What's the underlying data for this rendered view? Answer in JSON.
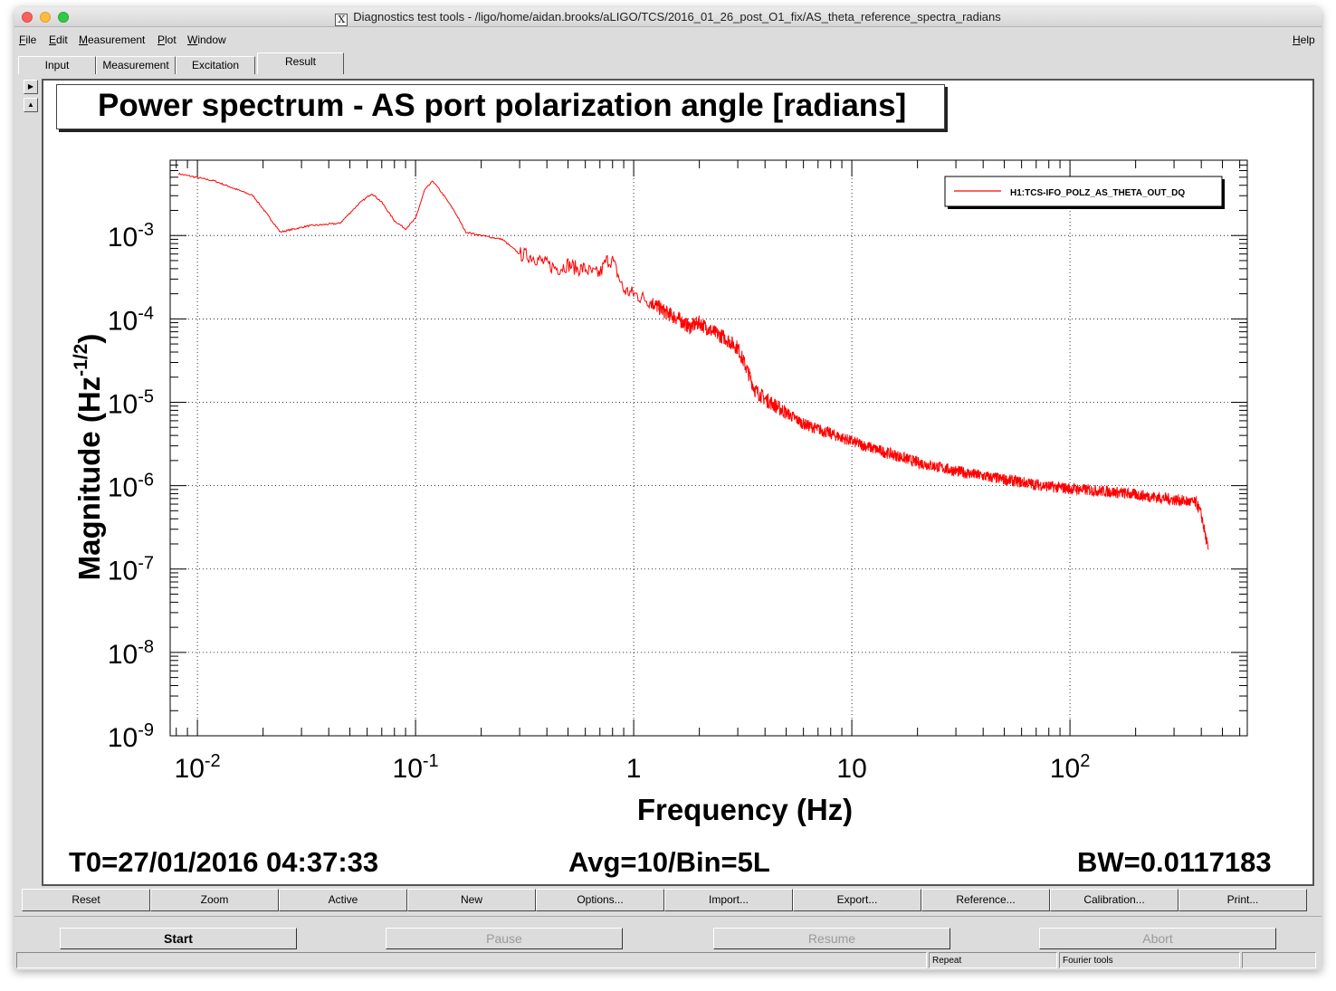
{
  "window": {
    "title": "Diagnostics test tools - /ligo/home/aidan.brooks/aLIGO/TCS/2016_01_26_post_O1_fix/AS_theta_reference_spectra_radians"
  },
  "menu": {
    "file": {
      "first": "F",
      "rest": "ile"
    },
    "edit": {
      "first": "E",
      "rest": "dit"
    },
    "measurement": {
      "first": "M",
      "rest": "easurement"
    },
    "plot": {
      "first": "P",
      "rest": "lot"
    },
    "window": {
      "first": "W",
      "rest": "indow"
    },
    "help": {
      "first": "H",
      "rest": "elp"
    }
  },
  "tabs": [
    "Input",
    "Measurement",
    "Excitation",
    "Result"
  ],
  "plot": {
    "title": "Power spectrum - AS port polarization angle [radians]",
    "legend": "H1:TCS-IFO_POLZ_AS_THETA_OUT_DQ",
    "footer": {
      "t0": "T0=27/01/2016 04:37:33",
      "avg": "Avg=10/Bin=5L",
      "bw": "BW=0.0117183"
    }
  },
  "chart_data": {
    "type": "line",
    "title": "Power spectrum - AS port polarization angle [radians]",
    "xlabel": "Frequency (Hz)",
    "ylabel": "Magnitude (Hz^-1/2)",
    "xscale": "log",
    "yscale": "log",
    "xlim": [
      0.0075,
      650
    ],
    "ylim": [
      1e-09,
      0.008
    ],
    "grid": true,
    "legend_position": "top-right",
    "x_ticks": [
      {
        "value": 0.01,
        "base": "10",
        "exp": "-2"
      },
      {
        "value": 0.1,
        "base": "10",
        "exp": "-1"
      },
      {
        "value": 1,
        "base": "1",
        "exp": ""
      },
      {
        "value": 10,
        "base": "10",
        "exp": ""
      },
      {
        "value": 100,
        "base": "10",
        "exp": "2"
      }
    ],
    "y_ticks": [
      {
        "value": 0.001,
        "base": "10",
        "exp": "-3"
      },
      {
        "value": 0.0001,
        "base": "10",
        "exp": "-4"
      },
      {
        "value": 1e-05,
        "base": "10",
        "exp": "-5"
      },
      {
        "value": 1e-06,
        "base": "10",
        "exp": "-6"
      },
      {
        "value": 1e-07,
        "base": "10",
        "exp": "-7"
      },
      {
        "value": 1e-08,
        "base": "10",
        "exp": "-8"
      },
      {
        "value": 1e-09,
        "base": "10",
        "exp": "-9"
      }
    ],
    "series": [
      {
        "name": "H1:TCS-IFO_POLZ_AS_THETA_OUT_DQ",
        "color": "#ff0000",
        "x": [
          0.0082,
          0.012,
          0.018,
          0.024,
          0.032,
          0.045,
          0.055,
          0.063,
          0.07,
          0.08,
          0.09,
          0.1,
          0.11,
          0.12,
          0.135,
          0.15,
          0.17,
          0.2,
          0.25,
          0.3,
          0.35,
          0.4,
          0.45,
          0.5,
          0.55,
          0.6,
          0.65,
          0.7,
          0.75,
          0.8,
          0.9,
          1.0,
          1.2,
          1.4,
          1.6,
          1.8,
          2.0,
          2.3,
          2.6,
          3.0,
          3.3,
          3.6,
          4.0,
          5.0,
          6.0,
          8.0,
          10,
          13,
          16,
          20,
          30,
          40,
          60,
          80,
          100,
          150,
          200,
          300,
          380,
          400,
          430
        ],
        "y": [
          0.0055,
          0.0045,
          0.003,
          0.0011,
          0.0013,
          0.0014,
          0.0024,
          0.0032,
          0.0025,
          0.0015,
          0.0012,
          0.0016,
          0.0035,
          0.0045,
          0.003,
          0.002,
          0.0011,
          0.001,
          0.0009,
          0.0006,
          0.00055,
          0.00045,
          0.0004,
          0.00045,
          0.0004,
          0.0004,
          0.00035,
          0.00035,
          0.0005,
          0.0005,
          0.00022,
          0.0002,
          0.00016,
          0.00012,
          0.0001,
          8e-05,
          9e-05,
          7e-05,
          6e-05,
          4.5e-05,
          2.5e-05,
          1.4e-05,
          1.1e-05,
          7.5e-06,
          5.5e-06,
          4.2e-06,
          3.4e-06,
          2.7e-06,
          2.3e-06,
          1.9e-06,
          1.5e-06,
          1.3e-06,
          1.1e-06,
          9.8e-07,
          9.2e-07,
          8.5e-07,
          7.8e-07,
          6.8e-07,
          6.2e-07,
          4.5e-07,
          1.7e-07
        ]
      }
    ]
  },
  "buttons": [
    "Reset",
    "Zoom",
    "Active",
    "New",
    "Options...",
    "Import...",
    "Export...",
    "Reference...",
    "Calibration...",
    "Print..."
  ],
  "controls": {
    "start": "Start",
    "pause": "Pause",
    "resume": "Resume",
    "abort": "Abort"
  },
  "status": {
    "repeat": "Repeat",
    "fourier": "Fourier tools"
  }
}
